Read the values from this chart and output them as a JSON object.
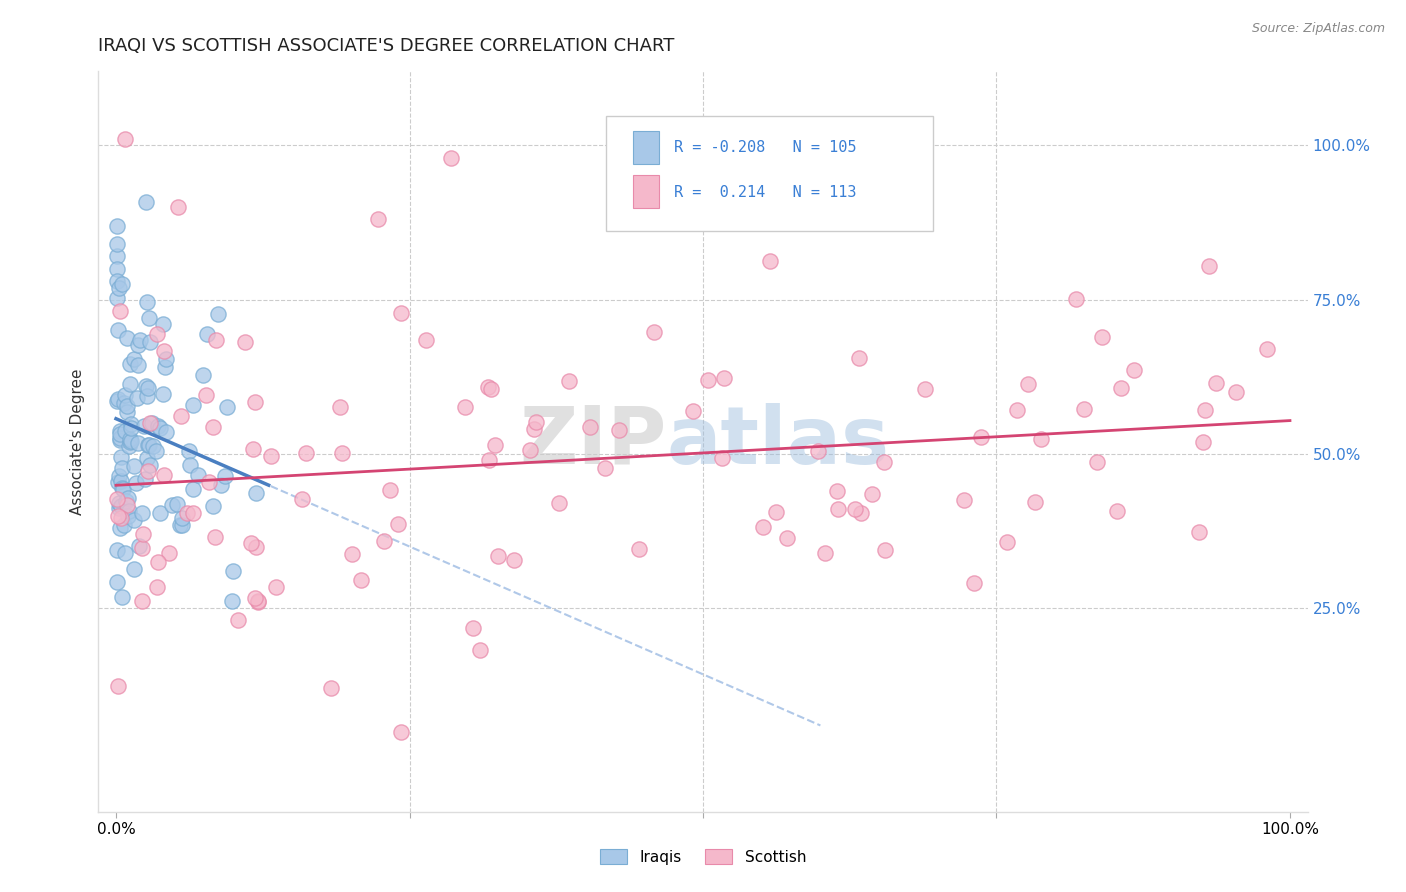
{
  "title": "IRAQI VS SCOTTISH ASSOCIATE'S DEGREE CORRELATION CHART",
  "source": "Source: ZipAtlas.com",
  "ylabel": "Associate's Degree",
  "iraqi_color": "#a8c8e8",
  "iraqi_edge_color": "#7aadd4",
  "scottish_color": "#f5b8cb",
  "scottish_edge_color": "#e88aaa",
  "iraqi_line_color": "#4a7fc1",
  "scottish_line_color": "#d44472",
  "dashed_line_color": "#b0c8e8",
  "legend_text_color": "#3a7fd5",
  "background_color": "#ffffff",
  "grid_color": "#cccccc",
  "title_fontsize": 13,
  "axis_label_fontsize": 11,
  "tick_fontsize": 11,
  "R_iraqi": -0.208,
  "N_iraqi": 105,
  "R_scottish": 0.214,
  "N_scottish": 113
}
